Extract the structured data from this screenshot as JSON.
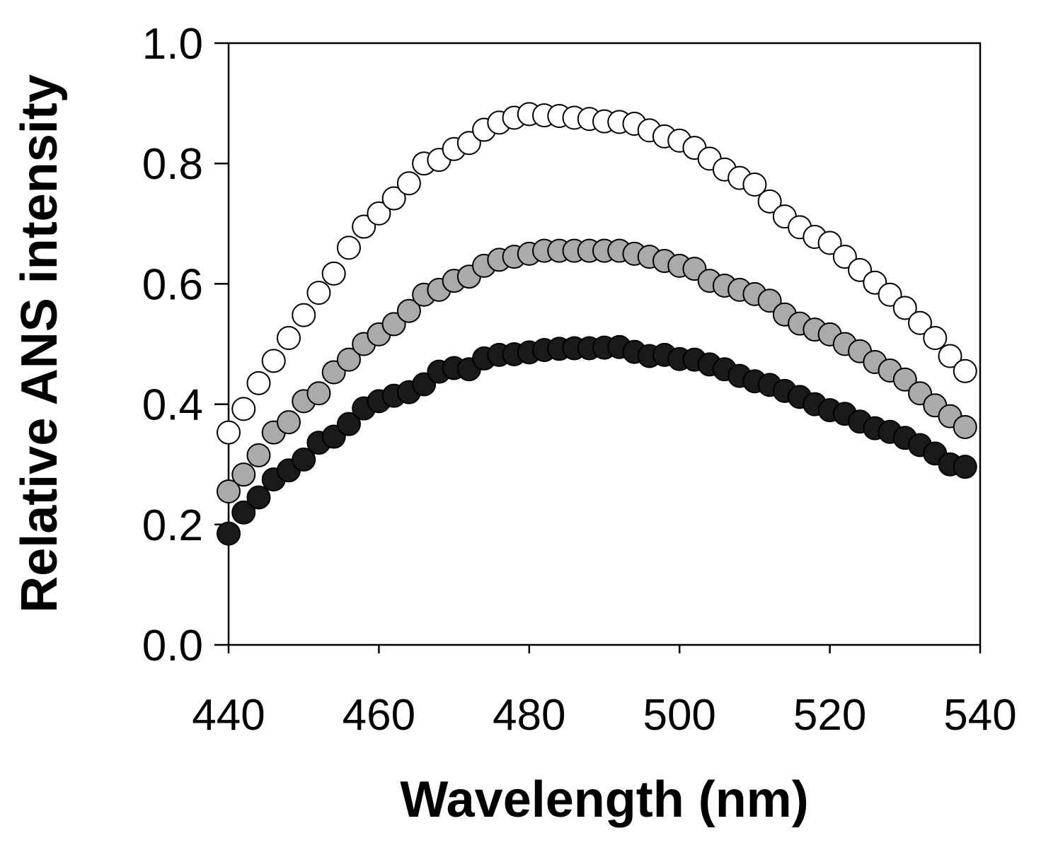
{
  "chart_data": {
    "type": "scatter",
    "title": "",
    "xlabel": "Wavelength (nm)",
    "ylabel": "Relative ANS intensity",
    "xlim": [
      440,
      540
    ],
    "ylim": [
      0.0,
      1.0
    ],
    "xticks": [
      440,
      460,
      480,
      500,
      520,
      540
    ],
    "yticks": [
      0.0,
      0.2,
      0.4,
      0.6,
      0.8,
      1.0
    ],
    "ytick_labels": [
      "0.0",
      "0.2",
      "0.4",
      "0.6",
      "0.8",
      "1.0"
    ],
    "grid": false,
    "legend": "none",
    "x": [
      440,
      442,
      444,
      446,
      448,
      450,
      452,
      454,
      456,
      458,
      460,
      462,
      464,
      466,
      468,
      470,
      472,
      474,
      476,
      478,
      480,
      482,
      484,
      486,
      488,
      490,
      492,
      494,
      496,
      498,
      500,
      502,
      504,
      506,
      508,
      510,
      512,
      514,
      516,
      518,
      520,
      522,
      524,
      526,
      528,
      530,
      532,
      534,
      536,
      538
    ],
    "series": [
      {
        "name": "open",
        "fill": "#ffffff",
        "values": [
          0.353,
          0.392,
          0.435,
          0.472,
          0.51,
          0.548,
          0.585,
          0.617,
          0.66,
          0.695,
          0.717,
          0.742,
          0.767,
          0.8,
          0.806,
          0.824,
          0.834,
          0.856,
          0.868,
          0.876,
          0.882,
          0.88,
          0.879,
          0.876,
          0.874,
          0.87,
          0.869,
          0.866,
          0.855,
          0.845,
          0.838,
          0.826,
          0.808,
          0.79,
          0.776,
          0.765,
          0.737,
          0.712,
          0.694,
          0.678,
          0.668,
          0.645,
          0.623,
          0.602,
          0.582,
          0.56,
          0.535,
          0.51,
          0.48,
          0.455
        ]
      },
      {
        "name": "gray",
        "fill": "#aaaaaa",
        "values": [
          0.255,
          0.283,
          0.315,
          0.353,
          0.37,
          0.405,
          0.418,
          0.453,
          0.474,
          0.5,
          0.516,
          0.533,
          0.555,
          0.582,
          0.59,
          0.605,
          0.612,
          0.63,
          0.64,
          0.645,
          0.65,
          0.655,
          0.655,
          0.655,
          0.655,
          0.655,
          0.655,
          0.65,
          0.645,
          0.638,
          0.63,
          0.625,
          0.605,
          0.597,
          0.59,
          0.583,
          0.572,
          0.549,
          0.534,
          0.524,
          0.516,
          0.5,
          0.488,
          0.47,
          0.456,
          0.441,
          0.418,
          0.398,
          0.38,
          0.362
        ]
      },
      {
        "name": "black",
        "fill": "#1a1a1a",
        "values": [
          0.185,
          0.22,
          0.245,
          0.275,
          0.29,
          0.308,
          0.336,
          0.346,
          0.367,
          0.393,
          0.405,
          0.414,
          0.42,
          0.433,
          0.454,
          0.46,
          0.458,
          0.476,
          0.482,
          0.483,
          0.486,
          0.49,
          0.492,
          0.493,
          0.493,
          0.494,
          0.495,
          0.487,
          0.48,
          0.482,
          0.475,
          0.474,
          0.466,
          0.458,
          0.447,
          0.438,
          0.432,
          0.422,
          0.412,
          0.4,
          0.39,
          0.384,
          0.371,
          0.36,
          0.354,
          0.344,
          0.332,
          0.318,
          0.3,
          0.296
        ]
      }
    ]
  }
}
